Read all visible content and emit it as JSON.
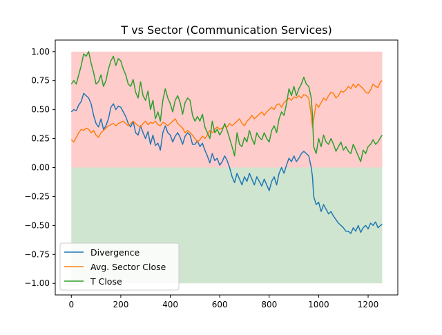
{
  "chart_data": {
    "type": "line",
    "title": "T vs Sector (Communication Services)",
    "xlabel": "",
    "ylabel": "",
    "xlim": [
      -65,
      1320
    ],
    "ylim": [
      -1.1,
      1.1
    ],
    "xticks": [
      0,
      200,
      400,
      600,
      800,
      1000,
      1200
    ],
    "xtick_labels": [
      "0",
      "200",
      "400",
      "600",
      "800",
      "1000",
      "1200"
    ],
    "yticks": [
      1.0,
      0.75,
      0.5,
      0.25,
      0.0,
      -0.25,
      -0.5,
      -0.75,
      -1.0
    ],
    "ytick_labels": [
      "1.00",
      "0.75",
      "0.50",
      "0.25",
      "0.00",
      "−0.25",
      "−0.50",
      "−0.75",
      "−1.00"
    ],
    "grid": false,
    "legend_position": "lower-left",
    "bands": [
      {
        "y_from": 0.0,
        "y_to": 1.0,
        "x_from": 0,
        "x_to": 1257,
        "color": "#ffcccc"
      },
      {
        "y_from": -1.0,
        "y_to": 0.0,
        "x_from": 0,
        "x_to": 1257,
        "color": "#cfe5cf"
      }
    ],
    "series": [
      {
        "name": "Divergence",
        "color": "#1f77b4",
        "x": [
          0,
          10,
          20,
          30,
          40,
          50,
          60,
          70,
          80,
          90,
          100,
          110,
          120,
          130,
          140,
          150,
          160,
          170,
          180,
          190,
          200,
          210,
          220,
          230,
          240,
          250,
          260,
          270,
          280,
          290,
          300,
          310,
          320,
          330,
          340,
          350,
          360,
          370,
          380,
          390,
          400,
          410,
          420,
          430,
          440,
          450,
          460,
          470,
          480,
          490,
          500,
          510,
          520,
          530,
          540,
          550,
          560,
          570,
          580,
          590,
          600,
          610,
          620,
          630,
          640,
          650,
          660,
          670,
          680,
          690,
          700,
          710,
          720,
          730,
          740,
          750,
          760,
          770,
          780,
          790,
          800,
          810,
          820,
          830,
          840,
          850,
          860,
          870,
          880,
          890,
          900,
          910,
          920,
          930,
          940,
          950,
          960,
          970,
          975,
          980,
          990,
          1000,
          1010,
          1020,
          1030,
          1040,
          1050,
          1060,
          1070,
          1080,
          1090,
          1100,
          1110,
          1120,
          1130,
          1140,
          1150,
          1160,
          1170,
          1180,
          1190,
          1200,
          1210,
          1220,
          1230,
          1240,
          1250,
          1257
        ],
        "y": [
          0.48,
          0.5,
          0.49,
          0.54,
          0.57,
          0.64,
          0.62,
          0.6,
          0.55,
          0.45,
          0.38,
          0.35,
          0.42,
          0.33,
          0.36,
          0.42,
          0.52,
          0.55,
          0.5,
          0.53,
          0.52,
          0.48,
          0.44,
          0.38,
          0.35,
          0.4,
          0.3,
          0.28,
          0.36,
          0.3,
          0.25,
          0.31,
          0.2,
          0.28,
          0.19,
          0.21,
          0.15,
          0.3,
          0.36,
          0.3,
          0.28,
          0.22,
          0.27,
          0.3,
          0.26,
          0.2,
          0.27,
          0.3,
          0.28,
          0.2,
          0.2,
          0.23,
          0.18,
          0.21,
          0.15,
          0.1,
          0.04,
          0.12,
          0.06,
          0.08,
          0.02,
          0.05,
          0.1,
          0.06,
          0.0,
          -0.08,
          -0.13,
          -0.05,
          -0.1,
          -0.15,
          -0.08,
          -0.12,
          -0.05,
          -0.1,
          -0.15,
          -0.08,
          -0.12,
          -0.16,
          -0.1,
          -0.15,
          -0.2,
          -0.12,
          -0.08,
          -0.15,
          -0.05,
          0.0,
          -0.05,
          0.02,
          0.08,
          0.05,
          0.1,
          0.05,
          0.08,
          0.12,
          0.14,
          0.12,
          0.1,
          0.0,
          -0.08,
          -0.25,
          -0.32,
          -0.3,
          -0.38,
          -0.32,
          -0.36,
          -0.4,
          -0.38,
          -0.42,
          -0.45,
          -0.48,
          -0.5,
          -0.52,
          -0.55,
          -0.55,
          -0.57,
          -0.52,
          -0.55,
          -0.5,
          -0.56,
          -0.52,
          -0.5,
          -0.53,
          -0.48,
          -0.5,
          -0.47,
          -0.52,
          -0.5,
          -0.49
        ]
      },
      {
        "name": "Avg. Sector Close",
        "color": "#ff7f0e",
        "x": [
          0,
          10,
          20,
          30,
          40,
          50,
          60,
          70,
          80,
          90,
          100,
          110,
          120,
          130,
          140,
          150,
          160,
          170,
          180,
          190,
          200,
          210,
          220,
          230,
          240,
          250,
          260,
          270,
          280,
          290,
          300,
          310,
          320,
          330,
          340,
          350,
          360,
          370,
          380,
          390,
          400,
          410,
          420,
          430,
          440,
          450,
          460,
          470,
          480,
          490,
          500,
          510,
          520,
          530,
          540,
          550,
          560,
          570,
          580,
          590,
          600,
          610,
          620,
          630,
          640,
          650,
          660,
          670,
          680,
          690,
          700,
          710,
          720,
          730,
          740,
          750,
          760,
          770,
          780,
          790,
          800,
          810,
          820,
          830,
          840,
          850,
          860,
          870,
          880,
          890,
          900,
          910,
          920,
          930,
          940,
          950,
          960,
          970,
          975,
          980,
          990,
          1000,
          1010,
          1020,
          1030,
          1040,
          1050,
          1060,
          1070,
          1080,
          1090,
          1100,
          1110,
          1120,
          1130,
          1140,
          1150,
          1160,
          1170,
          1180,
          1190,
          1200,
          1210,
          1220,
          1230,
          1240,
          1250,
          1257
        ],
        "y": [
          0.24,
          0.22,
          0.26,
          0.3,
          0.33,
          0.32,
          0.34,
          0.33,
          0.3,
          0.32,
          0.28,
          0.26,
          0.3,
          0.32,
          0.34,
          0.36,
          0.37,
          0.38,
          0.36,
          0.38,
          0.39,
          0.4,
          0.38,
          0.36,
          0.38,
          0.4,
          0.38,
          0.36,
          0.35,
          0.38,
          0.4,
          0.37,
          0.39,
          0.38,
          0.4,
          0.37,
          0.36,
          0.39,
          0.38,
          0.36,
          0.38,
          0.4,
          0.42,
          0.38,
          0.36,
          0.34,
          0.3,
          0.32,
          0.3,
          0.28,
          0.25,
          0.22,
          0.24,
          0.27,
          0.25,
          0.28,
          0.32,
          0.3,
          0.33,
          0.35,
          0.33,
          0.34,
          0.36,
          0.35,
          0.38,
          0.36,
          0.38,
          0.4,
          0.42,
          0.38,
          0.36,
          0.4,
          0.42,
          0.45,
          0.42,
          0.44,
          0.46,
          0.48,
          0.45,
          0.48,
          0.5,
          0.52,
          0.5,
          0.54,
          0.55,
          0.52,
          0.56,
          0.58,
          0.6,
          0.58,
          0.61,
          0.6,
          0.62,
          0.6,
          0.63,
          0.62,
          0.6,
          0.45,
          0.35,
          0.42,
          0.55,
          0.52,
          0.56,
          0.6,
          0.58,
          0.62,
          0.65,
          0.64,
          0.6,
          0.62,
          0.66,
          0.65,
          0.67,
          0.7,
          0.68,
          0.72,
          0.69,
          0.72,
          0.7,
          0.68,
          0.65,
          0.64,
          0.67,
          0.72,
          0.7,
          0.69,
          0.74,
          0.75
        ]
      },
      {
        "name": "T Close",
        "color": "#2ca02c",
        "x": [
          0,
          10,
          20,
          30,
          40,
          50,
          60,
          70,
          80,
          90,
          100,
          110,
          120,
          130,
          140,
          150,
          160,
          170,
          180,
          190,
          200,
          210,
          220,
          230,
          240,
          250,
          260,
          270,
          280,
          290,
          300,
          310,
          320,
          330,
          340,
          350,
          360,
          370,
          380,
          390,
          400,
          410,
          420,
          430,
          440,
          450,
          460,
          470,
          480,
          490,
          500,
          510,
          520,
          530,
          540,
          550,
          560,
          570,
          580,
          590,
          600,
          610,
          620,
          630,
          640,
          650,
          660,
          670,
          680,
          690,
          700,
          710,
          720,
          730,
          740,
          750,
          760,
          770,
          780,
          790,
          800,
          810,
          820,
          830,
          840,
          850,
          860,
          870,
          880,
          890,
          900,
          910,
          920,
          930,
          940,
          950,
          960,
          970,
          975,
          980,
          990,
          1000,
          1010,
          1020,
          1030,
          1040,
          1050,
          1060,
          1070,
          1080,
          1090,
          1100,
          1110,
          1120,
          1130,
          1140,
          1150,
          1160,
          1170,
          1180,
          1190,
          1200,
          1210,
          1220,
          1230,
          1240,
          1250,
          1257
        ],
        "y": [
          0.72,
          0.75,
          0.72,
          0.8,
          0.88,
          0.98,
          0.96,
          1.0,
          0.9,
          0.82,
          0.72,
          0.74,
          0.8,
          0.7,
          0.75,
          0.85,
          0.92,
          0.96,
          0.88,
          0.94,
          0.92,
          0.85,
          0.8,
          0.72,
          0.7,
          0.76,
          0.65,
          0.6,
          0.74,
          0.62,
          0.58,
          0.66,
          0.5,
          0.58,
          0.42,
          0.48,
          0.4,
          0.58,
          0.68,
          0.6,
          0.55,
          0.48,
          0.58,
          0.62,
          0.56,
          0.46,
          0.56,
          0.6,
          0.58,
          0.45,
          0.4,
          0.44,
          0.4,
          0.46,
          0.35,
          0.3,
          0.25,
          0.4,
          0.3,
          0.33,
          0.28,
          0.32,
          0.38,
          0.32,
          0.25,
          0.18,
          0.1,
          0.3,
          0.2,
          0.18,
          0.26,
          0.22,
          0.32,
          0.25,
          0.2,
          0.3,
          0.26,
          0.24,
          0.3,
          0.25,
          0.22,
          0.32,
          0.36,
          0.3,
          0.42,
          0.48,
          0.45,
          0.55,
          0.68,
          0.62,
          0.7,
          0.62,
          0.68,
          0.72,
          0.78,
          0.72,
          0.7,
          0.6,
          0.45,
          0.18,
          0.12,
          0.25,
          0.18,
          0.28,
          0.22,
          0.2,
          0.25,
          0.2,
          0.14,
          0.18,
          0.22,
          0.15,
          0.18,
          0.14,
          0.12,
          0.2,
          0.15,
          0.1,
          0.05,
          0.15,
          0.12,
          0.18,
          0.2,
          0.24,
          0.2,
          0.22,
          0.26,
          0.28
        ]
      }
    ]
  }
}
